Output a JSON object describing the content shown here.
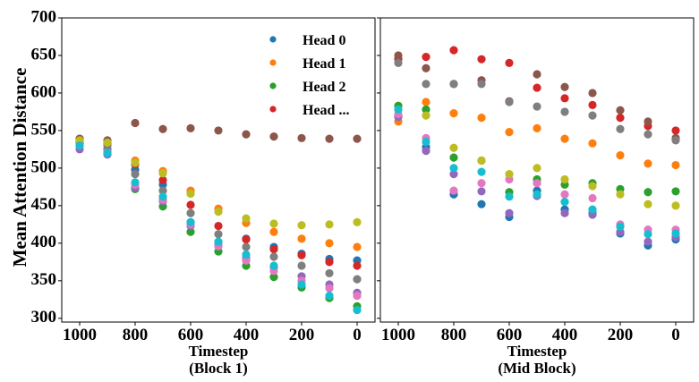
{
  "ylabel": "Mean Attention Distance",
  "legend": [
    {
      "label": "Head 0",
      "color": "#1f77b4"
    },
    {
      "label": "Head 1",
      "color": "#ff7f0e"
    },
    {
      "label": "Head 2",
      "color": "#2ca02c"
    },
    {
      "label": "Head ...",
      "color": "#d62728"
    }
  ],
  "chart_data": [
    {
      "type": "scatter",
      "xlabel": "Timestep",
      "subtitle": "(Block 1)",
      "xlim": [
        1000,
        0
      ],
      "ylim": [
        295,
        700
      ],
      "xticks": [
        1000,
        800,
        600,
        400,
        200,
        0
      ],
      "yticks": [
        300,
        350,
        400,
        450,
        500,
        550,
        600,
        650,
        700
      ],
      "x": [
        1000,
        900,
        800,
        700,
        600,
        500,
        400,
        300,
        200,
        100,
        0
      ],
      "series": [
        {
          "color": "#1f77b4",
          "values": [
            535,
            525,
            498,
            478,
            428,
            398,
            406,
            395,
            386,
            379,
            377
          ]
        },
        {
          "color": "#ff7f0e",
          "values": [
            538,
            533,
            510,
            496,
            470,
            446,
            427,
            415,
            406,
            400,
            395
          ]
        },
        {
          "color": "#2ca02c",
          "values": [
            533,
            522,
            472,
            449,
            415,
            389,
            370,
            355,
            341,
            327,
            316
          ]
        },
        {
          "color": "#d62728",
          "values": [
            539,
            533,
            505,
            484,
            451,
            423,
            405,
            392,
            384,
            375,
            370
          ]
        },
        {
          "color": "#9467bd",
          "values": [
            525,
            518,
            474,
            456,
            423,
            398,
            380,
            368,
            356,
            345,
            334
          ]
        },
        {
          "color": "#8c564b",
          "values": [
            539,
            537,
            560,
            552,
            553,
            550,
            545,
            542,
            540,
            539,
            539
          ]
        },
        {
          "color": "#e377c2",
          "values": [
            530,
            522,
            478,
            458,
            425,
            396,
            377,
            363,
            350,
            340,
            330
          ]
        },
        {
          "color": "#7f7f7f",
          "values": [
            536,
            530,
            492,
            470,
            440,
            412,
            395,
            382,
            370,
            360,
            352
          ]
        },
        {
          "color": "#bcbd22",
          "values": [
            537,
            534,
            507,
            493,
            466,
            442,
            433,
            426,
            424,
            425,
            428
          ]
        },
        {
          "color": "#17becf",
          "values": [
            530,
            520,
            481,
            462,
            428,
            402,
            385,
            370,
            345,
            330,
            311
          ]
        }
      ]
    },
    {
      "type": "scatter",
      "xlabel": "Timestep",
      "subtitle": "(Mid Block)",
      "xlim": [
        1000,
        0
      ],
      "ylim": [
        295,
        700
      ],
      "xticks": [
        1000,
        800,
        600,
        400,
        200,
        0
      ],
      "yticks": [
        300,
        350,
        400,
        450,
        500,
        550,
        600,
        650,
        700
      ],
      "x": [
        1000,
        900,
        800,
        700,
        600,
        500,
        400,
        300,
        200,
        100,
        0
      ],
      "series": [
        {
          "color": "#1f77b4",
          "values": [
            570,
            528,
            465,
            452,
            435,
            470,
            445,
            440,
            413,
            397,
            405
          ]
        },
        {
          "color": "#ff7f0e",
          "values": [
            562,
            588,
            573,
            567,
            548,
            553,
            539,
            533,
            517,
            506,
            504
          ]
        },
        {
          "color": "#2ca02c",
          "values": [
            583,
            578,
            514,
            510,
            468,
            485,
            478,
            480,
            472,
            468,
            469
          ]
        },
        {
          "color": "#d62728",
          "values": [
            645,
            648,
            657,
            645,
            640,
            607,
            593,
            584,
            567,
            556,
            550
          ]
        },
        {
          "color": "#9467bd",
          "values": [
            568,
            523,
            492,
            469,
            440,
            463,
            440,
            438,
            415,
            402,
            408
          ]
        },
        {
          "color": "#8c564b",
          "values": [
            650,
            633,
            612,
            617,
            589,
            625,
            608,
            600,
            577,
            562,
            540
          ]
        },
        {
          "color": "#e377c2",
          "values": [
            572,
            540,
            470,
            480,
            485,
            480,
            465,
            460,
            425,
            418,
            418
          ]
        },
        {
          "color": "#7f7f7f",
          "values": [
            640,
            612,
            612,
            612,
            588,
            582,
            575,
            570,
            552,
            545,
            537
          ]
        },
        {
          "color": "#bcbd22",
          "values": [
            578,
            570,
            527,
            510,
            492,
            500,
            485,
            476,
            465,
            452,
            450
          ]
        },
        {
          "color": "#17becf",
          "values": [
            578,
            535,
            500,
            495,
            462,
            465,
            455,
            445,
            422,
            412,
            413
          ]
        }
      ]
    }
  ]
}
